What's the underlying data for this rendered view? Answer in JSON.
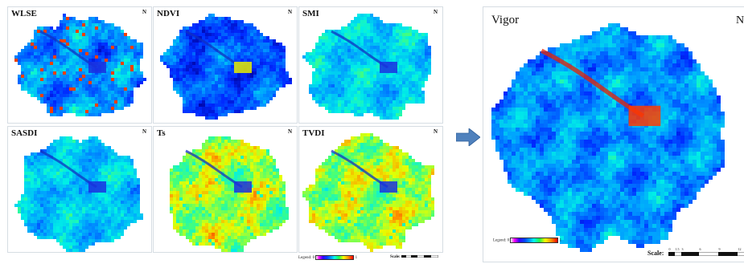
{
  "panels": [
    {
      "id": "wlse",
      "title": "WLSE",
      "scheme": "wlse"
    },
    {
      "id": "ndvi",
      "title": "NDVI",
      "scheme": "ndvi"
    },
    {
      "id": "smi",
      "title": "SMI",
      "scheme": "smi"
    },
    {
      "id": "sasdi",
      "title": "SASDI",
      "scheme": "sasdi"
    },
    {
      "id": "ts",
      "title": "Ts",
      "scheme": "ts"
    },
    {
      "id": "tvdi",
      "title": "TVDI",
      "scheme": "ts"
    }
  ],
  "result": {
    "title": "Vigor",
    "north_label": "N"
  },
  "north_symbol": "N",
  "legend": {
    "label": "Legend:",
    "min": "0",
    "max": "1"
  },
  "scale": {
    "label": "Scale:",
    "ticks": [
      "0",
      "1.5",
      "3",
      "6",
      "9",
      "12"
    ]
  },
  "colors": {
    "arrow": "#4f81bd",
    "panel_border": "#d6dde3"
  },
  "icons": {
    "arrow": "right-arrow-icon",
    "north": "north-arrow-icon"
  }
}
